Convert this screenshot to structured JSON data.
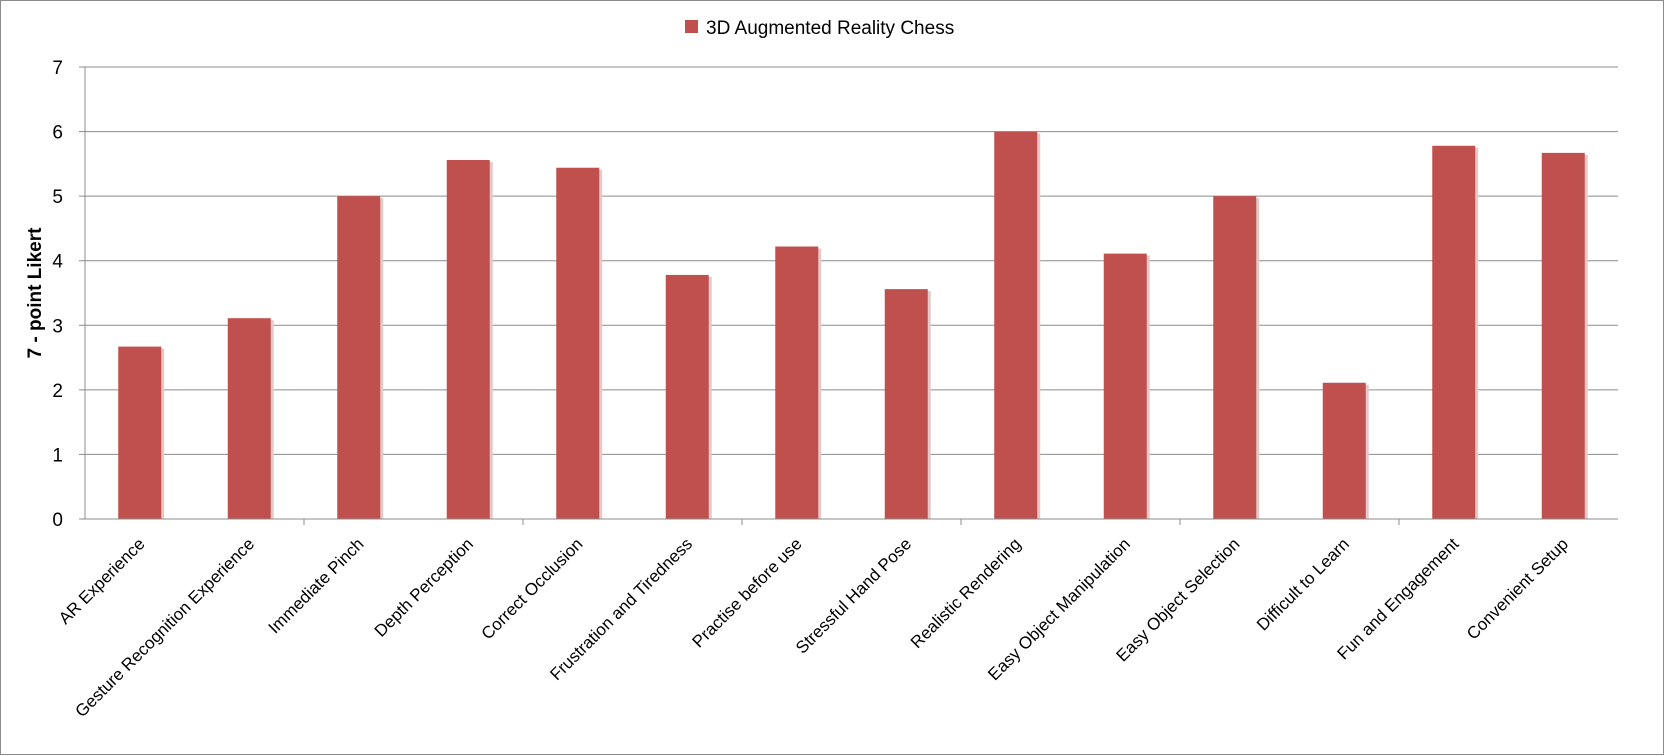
{
  "chart_data": {
    "type": "bar",
    "title": "",
    "xlabel": "",
    "ylabel": "7 - point Likert",
    "ylim": [
      0,
      7
    ],
    "yticks": [
      "0",
      "1",
      "2",
      "3",
      "4",
      "5",
      "6",
      "7"
    ],
    "grid": "horizontal",
    "legend_position": "top-center",
    "categories": [
      "AR Experience",
      "Gesture Recognition Experience",
      "Immediate Pinch",
      "Depth Perception",
      "Correct Occlusion",
      "Frustration and Tiredness",
      "Practise before use",
      "Stressful Hand Pose",
      "Realistic Rendering",
      "Easy Object Manipulation",
      "Easy Object Selection",
      "Difficult to Learn",
      "Fun and Engagement",
      "Convenient Setup"
    ],
    "series": [
      {
        "name": "3D Augmented Reality Chess",
        "color": "#c0504d",
        "values": [
          2.67,
          3.11,
          5.0,
          5.56,
          5.44,
          3.78,
          4.22,
          3.56,
          6.0,
          4.11,
          5.0,
          2.11,
          5.78,
          5.67
        ]
      }
    ]
  }
}
